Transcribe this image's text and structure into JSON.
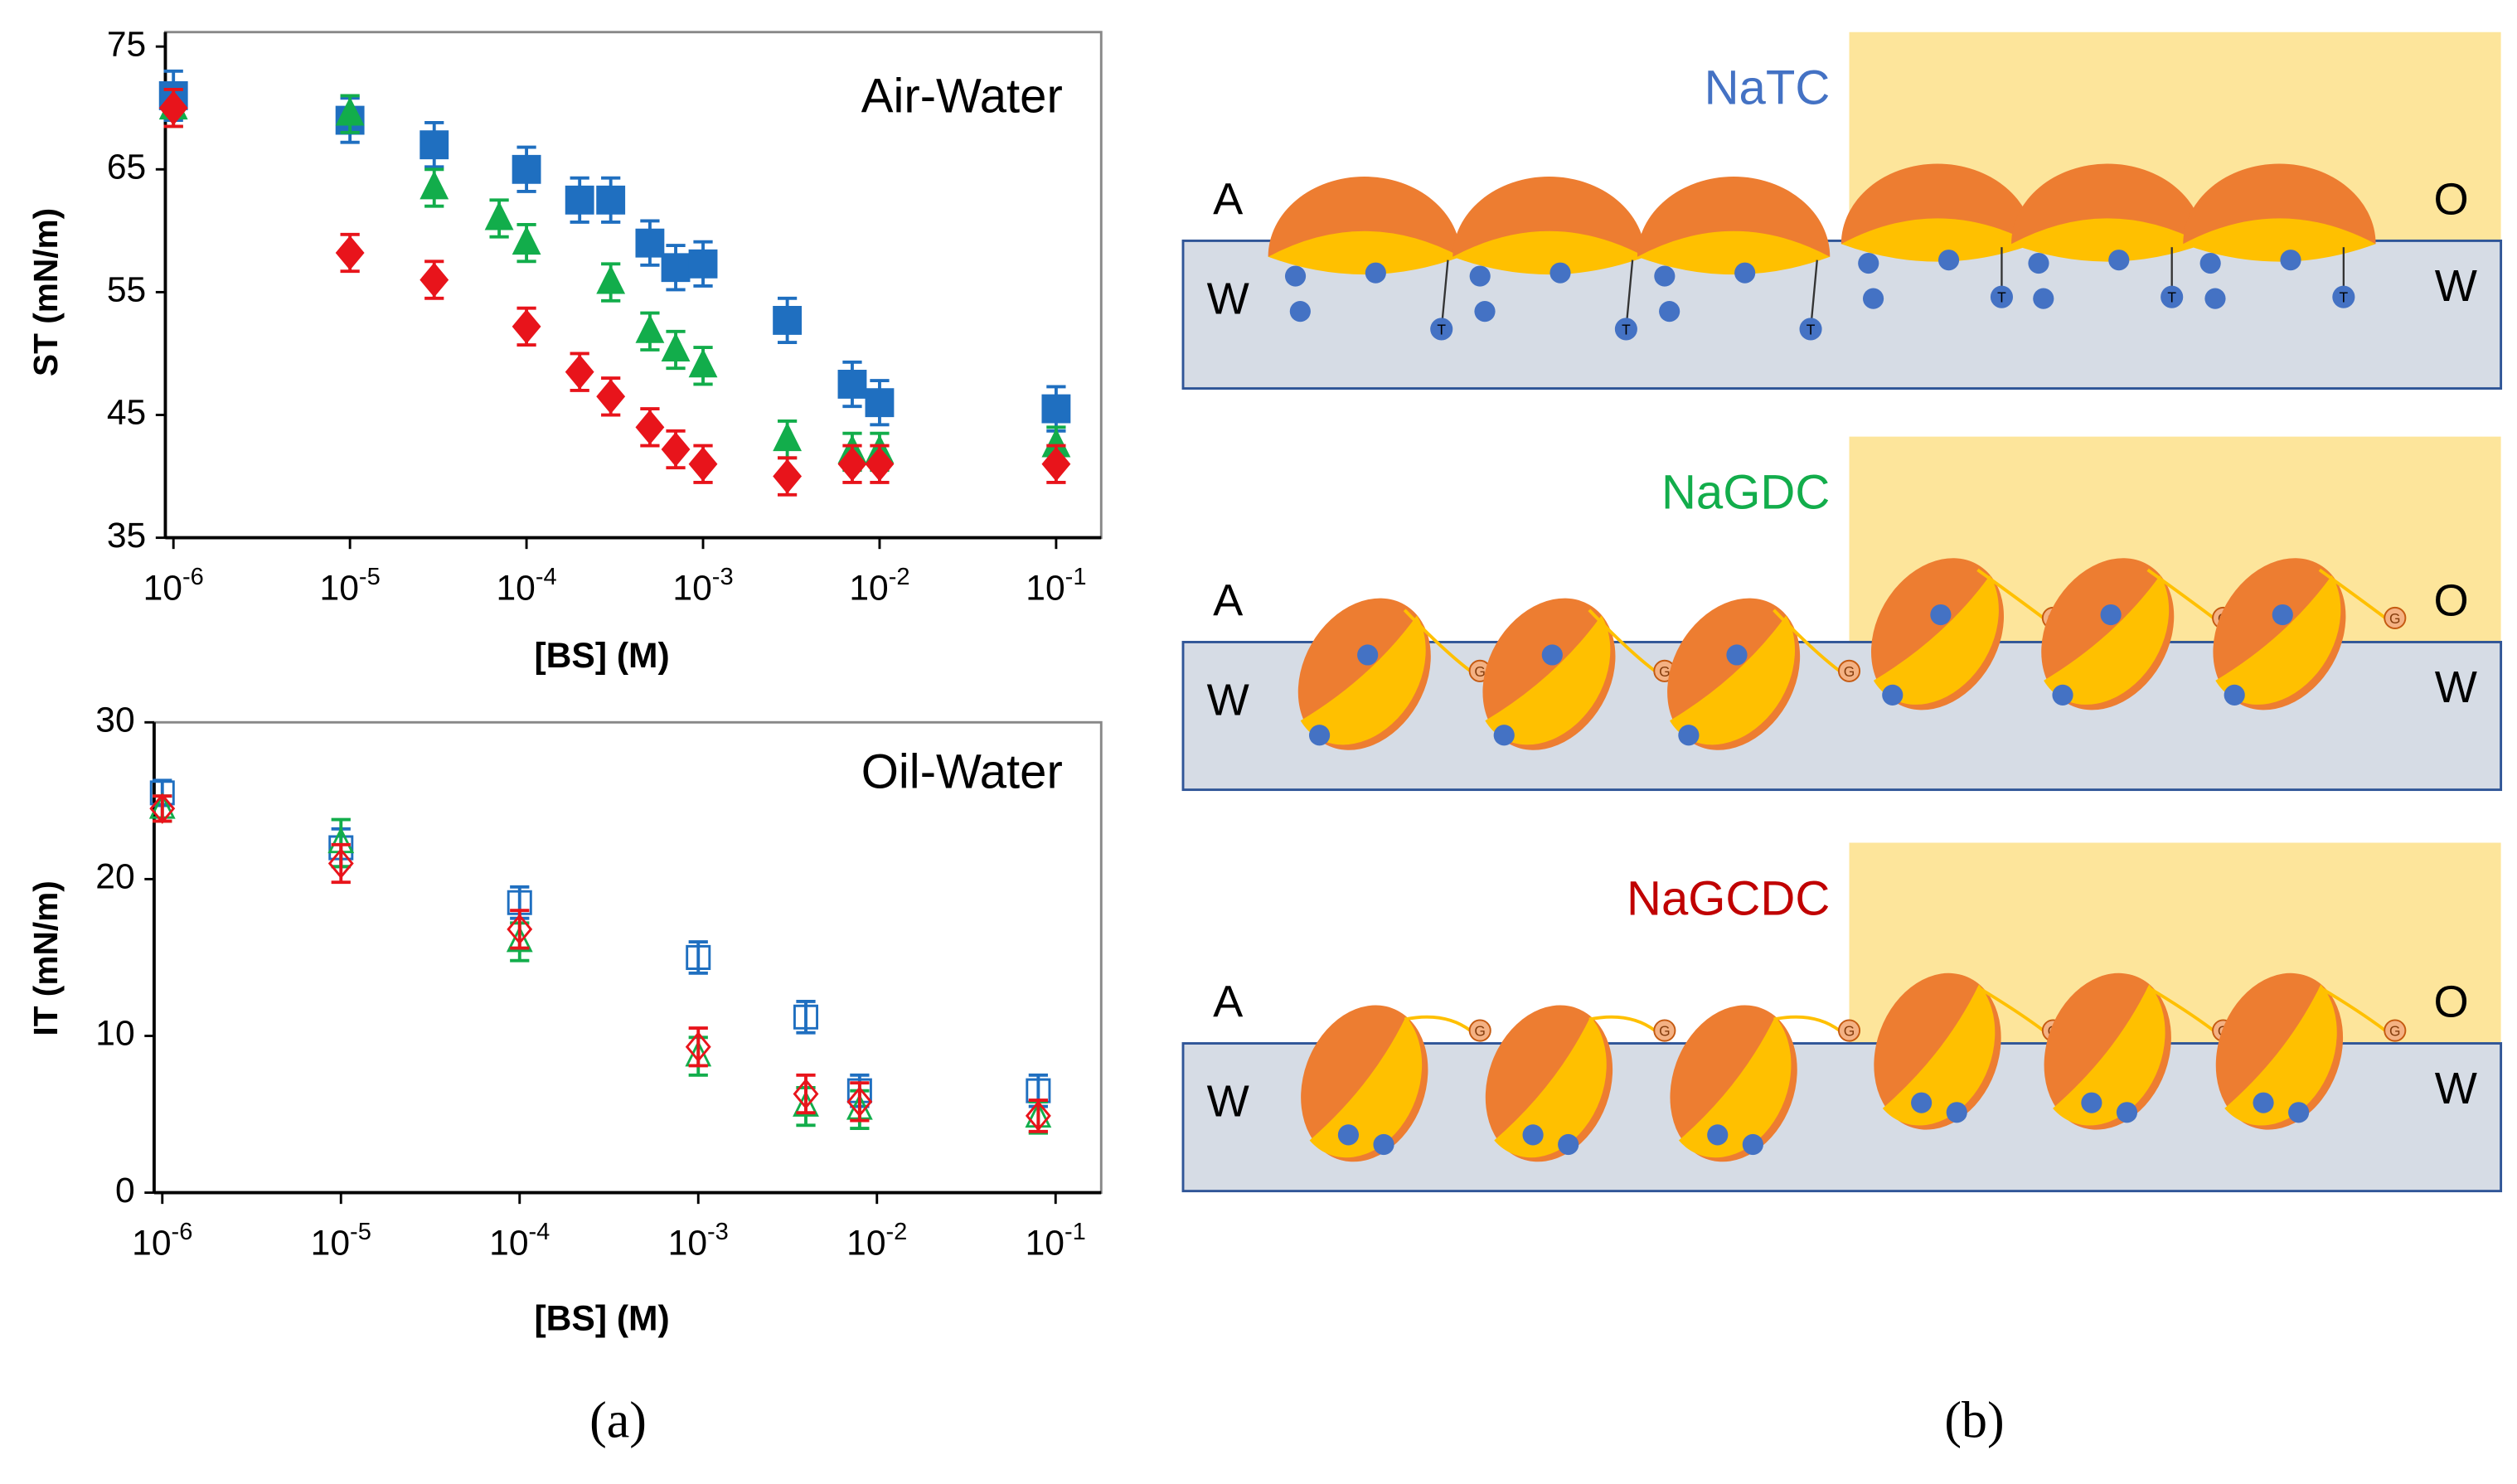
{
  "chart_data": [
    {
      "type": "scatter",
      "annotation": "Air-Water",
      "xlabel": "[BS] (M)",
      "ylabel": "ST (mN/m)",
      "xscale": "log",
      "filled": true,
      "xlim": [
        9e-07,
        0.18
      ],
      "ylim": [
        35,
        75
      ],
      "yticks": [
        35,
        45,
        55,
        65,
        75
      ],
      "xticks": [
        {
          "value": 1e-06,
          "label": "10-6"
        },
        {
          "value": 1e-05,
          "label": "10-5"
        },
        {
          "value": 0.0001,
          "label": "10-4"
        },
        {
          "value": 0.001,
          "label": "10-3"
        },
        {
          "value": 0.01,
          "label": "10-2"
        },
        {
          "value": 0.1,
          "label": "10-1"
        }
      ],
      "series": [
        {
          "color": "#1f6fc0",
          "marker": "square",
          "x": [
            1e-06,
            1e-05,
            3e-05,
            0.0001,
            0.0002,
            0.0003,
            0.0005,
            0.0007,
            0.001,
            0.003,
            0.007,
            0.01,
            0.1
          ],
          "values": [
            71,
            69,
            67,
            65,
            62.5,
            62.5,
            59,
            57,
            57.3,
            52.7,
            47.5,
            46,
            45.5
          ],
          "errors": [
            2,
            1.8,
            1.8,
            1.8,
            1.8,
            1.8,
            1.8,
            1.8,
            1.8,
            1.8,
            1.8,
            1.8,
            1.8
          ]
        },
        {
          "color": "#12ad4b",
          "marker": "triangle",
          "x": [
            1e-06,
            1e-05,
            3e-05,
            7e-05,
            0.0001,
            0.0003,
            0.0005,
            0.0007,
            0.001,
            0.003,
            0.007,
            0.01,
            0.1
          ],
          "values": [
            70,
            69.5,
            63.5,
            61,
            59,
            55.8,
            51.8,
            50.3,
            49,
            43,
            42,
            42,
            42.5
          ],
          "errors": [
            1.5,
            1.5,
            1.5,
            1.5,
            1.5,
            1.5,
            1.5,
            1.5,
            1.5,
            1.5,
            1.5,
            1.5,
            1.5
          ]
        },
        {
          "color": "#e8141b",
          "marker": "diamond",
          "x": [
            1e-06,
            1e-05,
            3e-05,
            0.0001,
            0.0002,
            0.0003,
            0.0005,
            0.0007,
            0.001,
            0.003,
            0.007,
            0.01,
            0.1
          ],
          "values": [
            70,
            58.2,
            56,
            52.2,
            48.5,
            46.5,
            44,
            42.2,
            41,
            40,
            41,
            41,
            41
          ],
          "errors": [
            1.5,
            1.5,
            1.5,
            1.5,
            1.5,
            1.5,
            1.5,
            1.5,
            1.5,
            1.5,
            1.5,
            1.5,
            1.5
          ]
        }
      ]
    },
    {
      "type": "scatter",
      "annotation": "Oil-Water",
      "xlabel": "[BS] (M)",
      "ylabel": "IT (mN/m)",
      "xscale": "log",
      "filled": false,
      "xlim": [
        9e-07,
        0.18
      ],
      "ylim": [
        0,
        30
      ],
      "yticks": [
        0,
        10,
        20,
        30
      ],
      "xticks": [
        {
          "value": 1e-06,
          "label": "10-6"
        },
        {
          "value": 1e-05,
          "label": "10-5"
        },
        {
          "value": 0.0001,
          "label": "10-4"
        },
        {
          "value": 0.001,
          "label": "10-3"
        },
        {
          "value": 0.01,
          "label": "10-2"
        },
        {
          "value": 0.1,
          "label": "10-1"
        }
      ],
      "series": [
        {
          "color": "#1f6fc0",
          "marker": "square",
          "x": [
            1e-06,
            1e-05,
            0.0001,
            0.001,
            0.004,
            0.008,
            0.08
          ],
          "values": [
            25.5,
            22,
            18.5,
            15,
            11.2,
            6.5,
            6.5
          ],
          "errors": [
            0.8,
            1.2,
            1,
            1,
            1,
            1,
            1
          ]
        },
        {
          "color": "#12ad4b",
          "marker": "triangle",
          "x": [
            1e-06,
            1e-05,
            0.0001,
            0.001,
            0.004,
            0.008,
            0.08
          ],
          "values": [
            24.5,
            22.3,
            16,
            8.7,
            5.5,
            5.3,
            4.8
          ],
          "errors": [
            0.8,
            1.5,
            1.2,
            1.2,
            1.2,
            1.2,
            1
          ]
        },
        {
          "color": "#e8141b",
          "marker": "diamond",
          "x": [
            1e-06,
            1e-05,
            0.0001,
            0.001,
            0.004,
            0.008,
            0.08
          ],
          "values": [
            24.5,
            21,
            16.8,
            9.3,
            6.3,
            5.8,
            4.9
          ],
          "errors": [
            0.8,
            1.2,
            1.2,
            1.2,
            1.2,
            1.2,
            1
          ]
        }
      ]
    }
  ],
  "panel_labels": [
    "(a)",
    "(b)"
  ],
  "diagram": {
    "phases": {
      "air": "A",
      "oil": "O",
      "water": "W"
    },
    "panels": [
      {
        "title": "NaTC",
        "color": "#4472c4",
        "tail": "T"
      },
      {
        "title": "NaGDC",
        "color": "#12ad4b",
        "tail": "G"
      },
      {
        "title": "NaGCDC",
        "color": "#c00000",
        "tail": "G"
      }
    ]
  }
}
